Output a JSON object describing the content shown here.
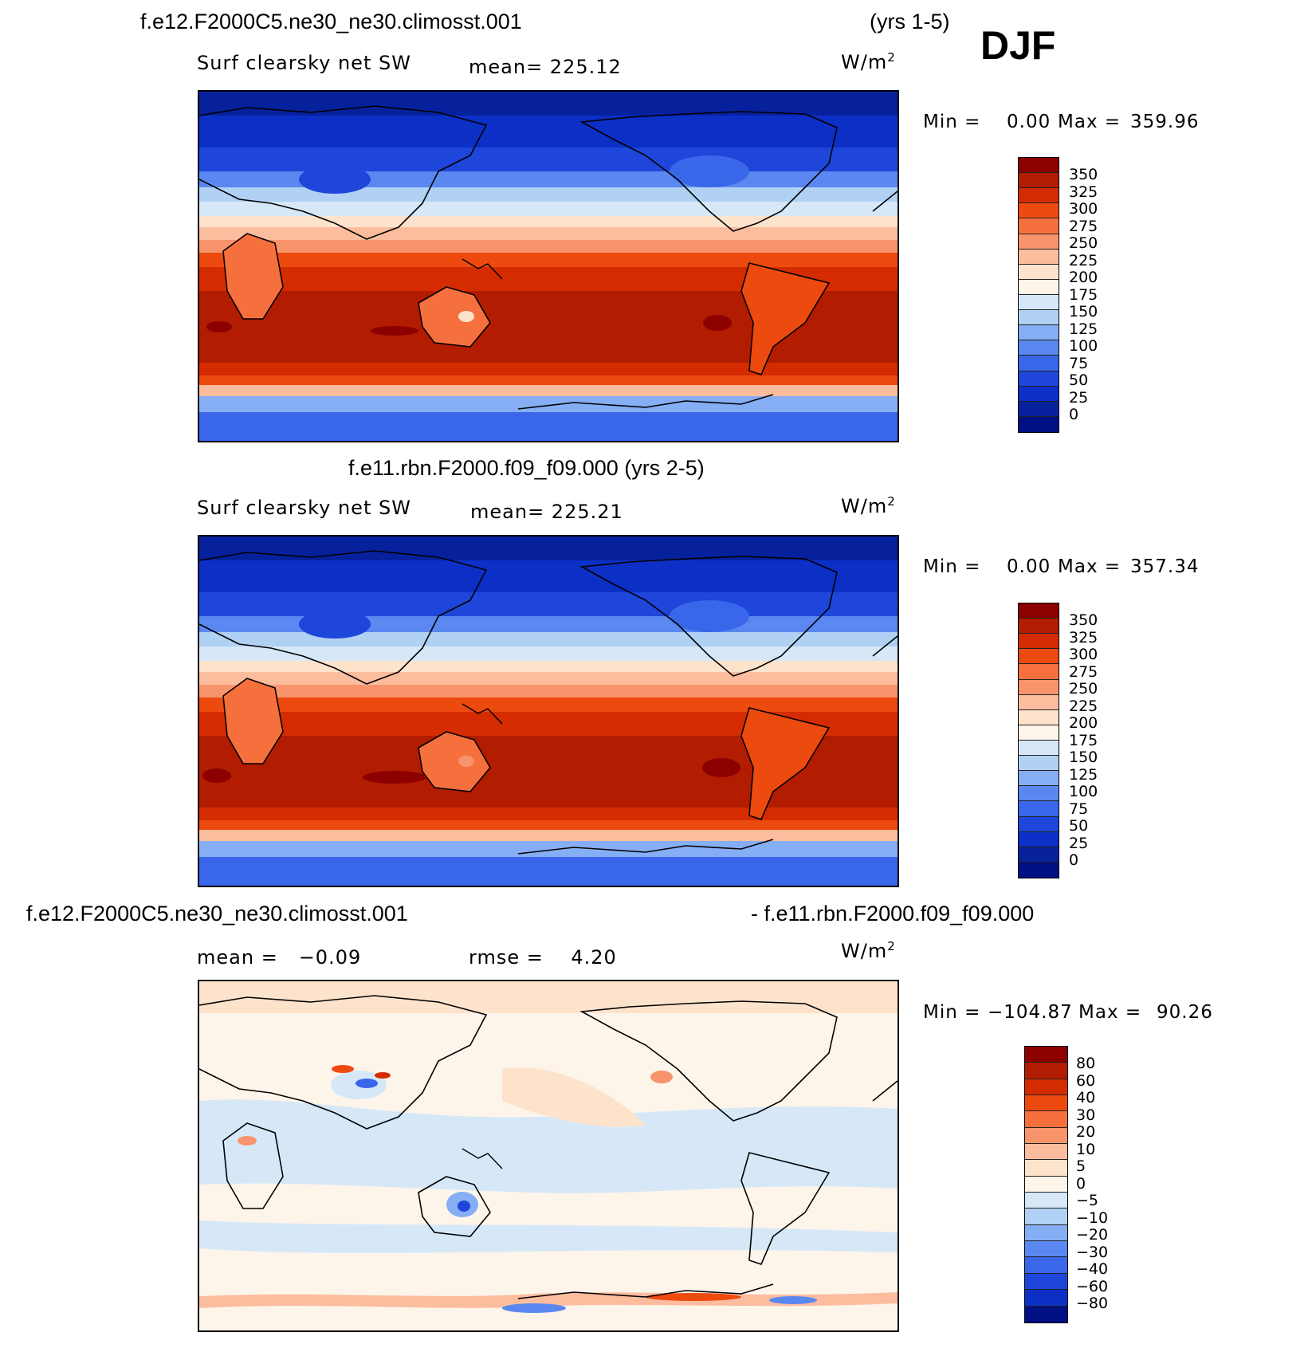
{
  "header": {
    "case1_title": "f.e12.F2000C5.ne30_ne30.climosst.001",
    "case1_years": "(yrs 1-5)",
    "season": "DJF"
  },
  "panels": [
    {
      "variable": "Surf clearsky net SW",
      "mean_text": "mean= 225.12",
      "units": "W/m",
      "units_exp": "2",
      "min_label": "Min =",
      "min_value": "0.00",
      "max_label": "Max =",
      "max_value": "359.96",
      "colorbar_labels": [
        "350",
        "325",
        "300",
        "275",
        "250",
        "225",
        "200",
        "175",
        "150",
        "125",
        "100",
        "75",
        "50",
        "25",
        "0"
      ],
      "colorbar_colors": [
        "#8c0000",
        "#b21c00",
        "#d42c00",
        "#ed4a10",
        "#f6703e",
        "#f8946c",
        "#fbbd9e",
        "#fde3cc",
        "#fdf4ea",
        "#d6e8f8",
        "#b0d0f4",
        "#86aef4",
        "#5a88f0",
        "#3a66ea",
        "#1e46da",
        "#0c2fc6",
        "#07219d",
        "#000f82"
      ]
    },
    {
      "title": "f.e11.rbn.F2000.f09_f09.000 (yrs 2-5)",
      "variable": "Surf clearsky net SW",
      "mean_text": "mean= 225.21",
      "units": "W/m",
      "units_exp": "2",
      "min_label": "Min =",
      "min_value": "0.00",
      "max_label": "Max =",
      "max_value": "357.34",
      "colorbar_labels": [
        "350",
        "325",
        "300",
        "275",
        "250",
        "225",
        "200",
        "175",
        "150",
        "125",
        "100",
        "75",
        "50",
        "25",
        "0"
      ],
      "colorbar_colors": [
        "#8c0000",
        "#b21c00",
        "#d42c00",
        "#ed4a10",
        "#f6703e",
        "#f8946c",
        "#fbbd9e",
        "#fde3cc",
        "#fdf4ea",
        "#d6e8f8",
        "#b0d0f4",
        "#86aef4",
        "#5a88f0",
        "#3a66ea",
        "#1e46da",
        "#0c2fc6",
        "#07219d",
        "#000f82"
      ]
    },
    {
      "title_left": "f.e12.F2000C5.ne30_ne30.climosst.001",
      "title_right": "- f.e11.rbn.F2000.f09_f09.000",
      "mean_text": "mean =   −0.09",
      "rmse_text": "rmse =    4.20",
      "units": "W/m",
      "units_exp": "2",
      "min_label": "Min =",
      "min_value": "−104.87",
      "max_label": "Max =",
      "max_value": "90.26",
      "colorbar_labels": [
        "80",
        "60",
        "40",
        "30",
        "20",
        "10",
        "5",
        "0",
        "−5",
        "−10",
        "−20",
        "−30",
        "−40",
        "−60",
        "−80"
      ],
      "colorbar_colors": [
        "#8c0000",
        "#b21c00",
        "#d42c00",
        "#ed4a10",
        "#f6703e",
        "#f8946c",
        "#fbbd9e",
        "#fde3cc",
        "#fdf4ea",
        "#d6e8f8",
        "#b0d0f4",
        "#86aef4",
        "#5a88f0",
        "#3a66ea",
        "#1e46da",
        "#0c2fc6",
        "#000f82"
      ]
    }
  ]
}
